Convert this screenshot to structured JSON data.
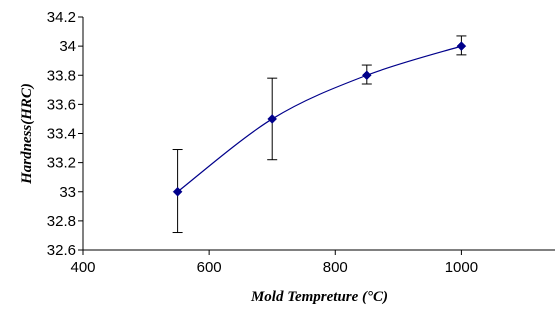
{
  "chart_data": {
    "type": "line",
    "title": "",
    "xlabel": "Mold Tempreture (°C)",
    "ylabel": "Hardness(HRC)",
    "xlim": [
      400,
      1150
    ],
    "ylim": [
      32.6,
      34.2
    ],
    "x_ticks": [
      400,
      600,
      800,
      1000
    ],
    "x_tick_labels": [
      "400",
      "600",
      "800",
      "1000"
    ],
    "y_ticks": [
      32.6,
      32.8,
      33,
      33.2,
      33.4,
      33.6,
      33.8,
      34,
      34.2
    ],
    "y_tick_labels": [
      "32.6",
      "32.8",
      "33",
      "33.2",
      "33.4",
      "33.6",
      "33.8",
      "34",
      "34.2"
    ],
    "grid": false,
    "legend": "none",
    "smooth": true,
    "series": [
      {
        "x": [
          550,
          700,
          850,
          1000
        ],
        "y": [
          33.0,
          33.5,
          33.8,
          34.0
        ],
        "error_low": [
          32.72,
          33.22,
          33.74,
          33.94
        ],
        "error_high": [
          33.29,
          33.78,
          33.87,
          34.07
        ],
        "color": "#00008b",
        "marker": "diamond"
      }
    ]
  }
}
